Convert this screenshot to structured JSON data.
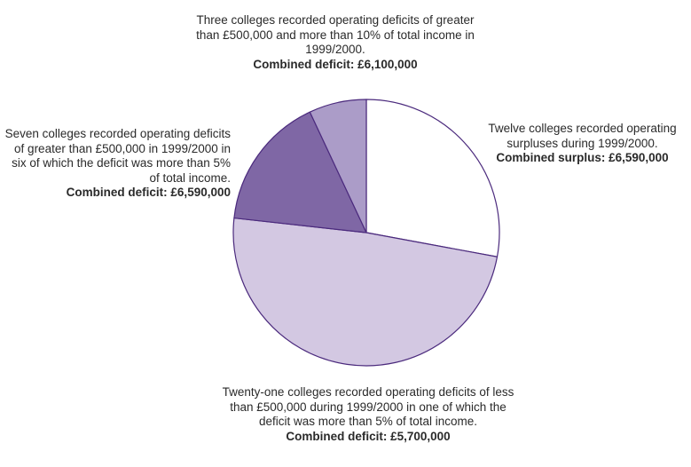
{
  "chart_data": {
    "type": "pie",
    "title": "",
    "unit": "colleges",
    "slices": [
      {
        "count": 12,
        "color": "#ffffff",
        "text": "Twelve colleges recorded operating surpluses during 1999/2000.",
        "bold": "Combined surplus: £6,590,000"
      },
      {
        "count": 21,
        "color": "#d3c8e2",
        "text": "Twenty-one colleges recorded operating deficits of less than £500,000 during 1999/2000 in one of which the deficit was more than 5% of total income.",
        "bold": "Combined deficit: £5,700,000"
      },
      {
        "count": 7,
        "color": "#7f67a5",
        "text": "Seven colleges recorded operating deficits of greater than £500,000 in 1999/2000 in six of which the deficit was more than 5% of total income.",
        "bold": "Combined deficit: £6,590,000"
      },
      {
        "count": 3,
        "color": "#ab9cc8",
        "text": "Three colleges recorded operating deficits of greater than £500,000 and more than 10% of total income in 1999/2000.",
        "bold": "Combined deficit: £6,100,000"
      }
    ],
    "outline_color": "#4b2a7d"
  }
}
